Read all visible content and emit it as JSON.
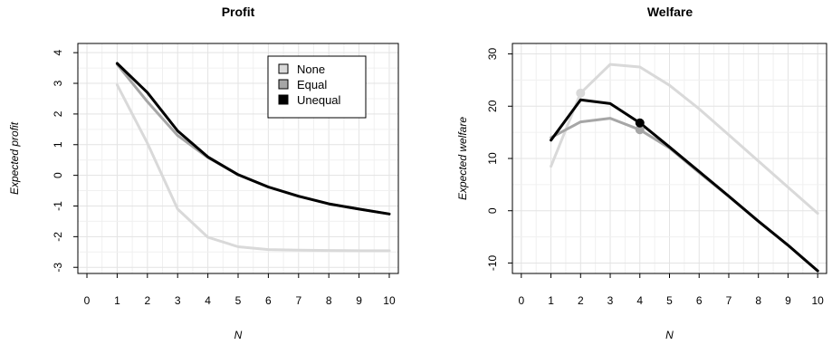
{
  "chart_data": [
    {
      "type": "line",
      "title": "Profit",
      "xlabel": "N",
      "ylabel": "Expected profit",
      "xlim": [
        -0.3,
        10.3
      ],
      "ylim": [
        -3.2,
        4.3
      ],
      "xticks": [
        0,
        1,
        2,
        3,
        4,
        5,
        6,
        7,
        8,
        9,
        10
      ],
      "yticks": [
        -3,
        -2,
        -1,
        0,
        1,
        2,
        3,
        4
      ],
      "grid": true,
      "legend": {
        "position": "top-right",
        "entries": [
          "None",
          "Equal",
          "Unequal"
        ]
      },
      "series": [
        {
          "name": "None",
          "color": "#d9d9d9",
          "x": [
            1,
            2,
            3,
            4,
            5,
            6,
            7,
            8,
            9,
            10
          ],
          "y": [
            2.95,
            1.05,
            -1.1,
            -2.02,
            -2.33,
            -2.42,
            -2.44,
            -2.45,
            -2.46,
            -2.46
          ]
        },
        {
          "name": "Equal",
          "color": "#a6a6a6",
          "x": [
            1,
            2,
            3,
            4,
            5,
            6,
            7,
            8,
            9,
            10
          ],
          "y": [
            3.62,
            2.4,
            1.3,
            0.58,
            0.02,
            -0.38,
            -0.68,
            -0.93,
            -1.1,
            -1.26
          ]
        },
        {
          "name": "Unequal",
          "color": "#000000",
          "x": [
            1,
            2,
            3,
            4,
            5,
            6,
            7,
            8,
            9,
            10
          ],
          "y": [
            3.65,
            2.7,
            1.45,
            0.6,
            0.02,
            -0.38,
            -0.68,
            -0.93,
            -1.1,
            -1.26
          ]
        }
      ]
    },
    {
      "type": "line",
      "title": "Welfare",
      "xlabel": "N",
      "ylabel": "Expected welfare",
      "xlim": [
        -0.3,
        10.3
      ],
      "ylim": [
        -12,
        32
      ],
      "xticks": [
        0,
        1,
        2,
        3,
        4,
        5,
        6,
        7,
        8,
        9,
        10
      ],
      "yticks": [
        -10,
        0,
        10,
        20,
        30
      ],
      "grid": true,
      "series": [
        {
          "name": "None",
          "color": "#d9d9d9",
          "x": [
            1,
            2,
            3,
            4,
            5,
            6,
            7,
            8,
            9,
            10
          ],
          "y": [
            8.5,
            22.5,
            28,
            27.5,
            24,
            19.5,
            14.5,
            9.5,
            4.5,
            -0.5
          ],
          "marker": {
            "x": 2,
            "y": 22.5
          }
        },
        {
          "name": "Equal",
          "color": "#a6a6a6",
          "x": [
            1,
            2,
            3,
            4,
            5,
            6,
            7,
            8,
            9,
            10
          ],
          "y": [
            14,
            17,
            17.7,
            15.5,
            12,
            7.3,
            2.7,
            -2,
            -6.6,
            -11.5
          ],
          "marker": {
            "x": 4,
            "y": 15.5
          }
        },
        {
          "name": "Unequal",
          "color": "#000000",
          "x": [
            1,
            2,
            3,
            4,
            5,
            6,
            7,
            8,
            9,
            10
          ],
          "y": [
            13.5,
            21.2,
            20.5,
            16.8,
            12.2,
            7.5,
            2.8,
            -2,
            -6.6,
            -11.5
          ],
          "marker": {
            "x": 4,
            "y": 16.8
          }
        }
      ]
    }
  ]
}
